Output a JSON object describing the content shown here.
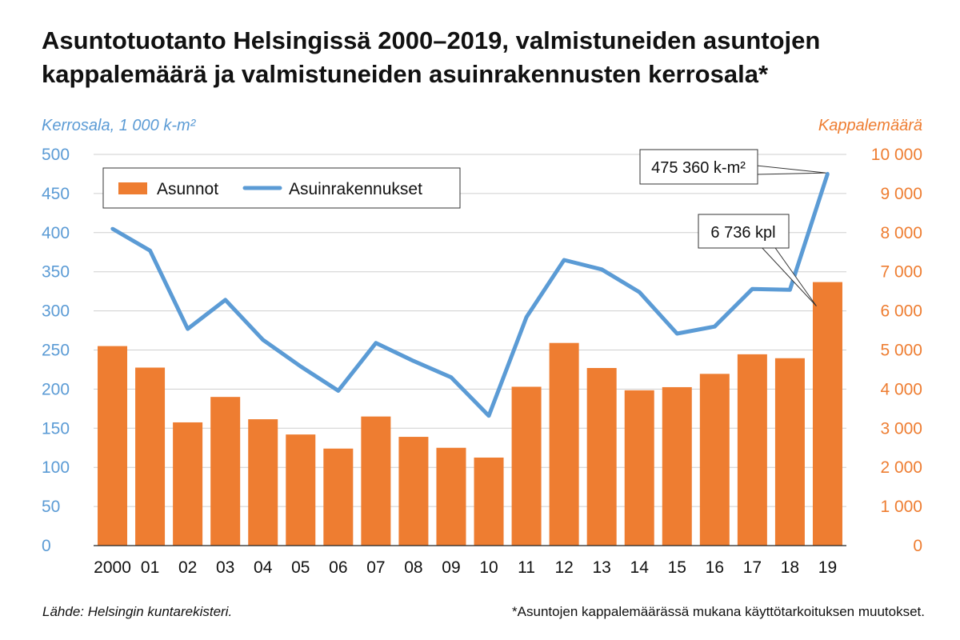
{
  "title": "Asuntotuotanto Helsingissä 2000–2019, valmistuneiden asuntojen kappalemäärä ja valmistuneiden asuinrakennusten kerrosala*",
  "source": "Lähde: Helsingin kuntarekisteri.",
  "footnote": "*Asuntojen kappalemäärässä mukana käyttötarkoituksen muutokset.",
  "colors": {
    "bar": "#ee7d31",
    "line": "#5b9bd5",
    "left_axis": "#5b9bd5",
    "right_axis": "#ee7d31",
    "grid": "#cfcfcf"
  },
  "chart_data": {
    "type": "bar",
    "categories": [
      "2000",
      "01",
      "02",
      "03",
      "04",
      "05",
      "06",
      "07",
      "08",
      "09",
      "10",
      "11",
      "12",
      "13",
      "14",
      "15",
      "16",
      "17",
      "18",
      "19"
    ],
    "series": [
      {
        "name": "Asunnot",
        "type": "bar",
        "axis": "right",
        "values": [
          5100,
          4550,
          3150,
          3800,
          3230,
          2840,
          2480,
          3300,
          2780,
          2500,
          2250,
          4060,
          5180,
          4540,
          3970,
          4050,
          4390,
          4890,
          4790,
          6736
        ]
      },
      {
        "name": "Asuinrakennukset",
        "type": "line",
        "axis": "left",
        "values": [
          405,
          377,
          277,
          314,
          263,
          229,
          198,
          259,
          236,
          215,
          166,
          292,
          365,
          353,
          324,
          271,
          280,
          328,
          327,
          475.36
        ]
      }
    ],
    "left_axis": {
      "label": "Kerrosala, 1 000 k-m²",
      "min": 0,
      "max": 500,
      "ticks": [
        "0",
        "50",
        "100",
        "150",
        "200",
        "250",
        "300",
        "350",
        "400",
        "450",
        "500"
      ]
    },
    "right_axis": {
      "label": "Kappalemäärä",
      "min": 0,
      "max": 10000,
      "ticks": [
        "0",
        "1 000",
        "2 000",
        "3 000",
        "4 000",
        "5 000",
        "6 000",
        "7 000",
        "8 000",
        "9 000",
        "10 000"
      ]
    },
    "annotations": [
      {
        "text": "475 360 k-m²",
        "series": "Asuinrakennukset",
        "index": 19
      },
      {
        "text": "6 736 kpl",
        "series": "Asunnot",
        "index": 19
      }
    ],
    "legend_position": "top-left",
    "grid": true
  }
}
